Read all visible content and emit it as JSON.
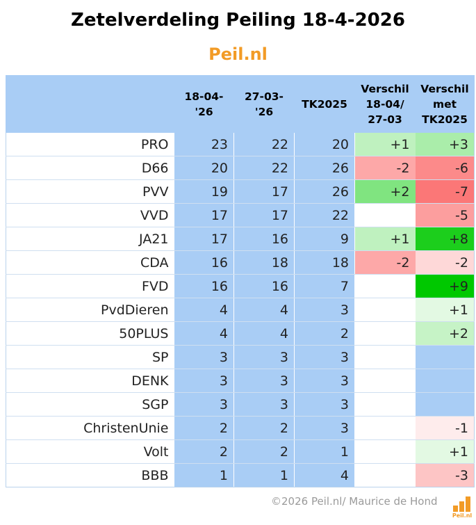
{
  "title": "Zetelverdeling Peiling 18-4-2026",
  "brand": "Peil.nl",
  "headers": {
    "party": "",
    "current": "18-04-\n'26",
    "previous": "27-03-\n'26",
    "tk": "TK2025",
    "diff_prev": "Verschil\n18-04/\n27-03",
    "diff_tk": "Verschil\nmet\nTK2025"
  },
  "rows": [
    {
      "party": "PRO",
      "current": "23",
      "previous": "22",
      "tk": "20",
      "diff_prev": "+1",
      "diff_tk": "+3"
    },
    {
      "party": "D66",
      "current": "20",
      "previous": "22",
      "tk": "26",
      "diff_prev": "-2",
      "diff_tk": "-6"
    },
    {
      "party": "PVV",
      "current": "19",
      "previous": "17",
      "tk": "26",
      "diff_prev": "+2",
      "diff_tk": "-7"
    },
    {
      "party": "VVD",
      "current": "17",
      "previous": "17",
      "tk": "22",
      "diff_prev": "",
      "diff_tk": "-5"
    },
    {
      "party": "JA21",
      "current": "17",
      "previous": "16",
      "tk": "9",
      "diff_prev": "+1",
      "diff_tk": "+8"
    },
    {
      "party": "CDA",
      "current": "16",
      "previous": "18",
      "tk": "18",
      "diff_prev": "-2",
      "diff_tk": "-2"
    },
    {
      "party": "FVD",
      "current": "16",
      "previous": "16",
      "tk": "7",
      "diff_prev": "",
      "diff_tk": "+9"
    },
    {
      "party": "PvdDieren",
      "current": "4",
      "previous": "4",
      "tk": "3",
      "diff_prev": "",
      "diff_tk": "+1"
    },
    {
      "party": "50PLUS",
      "current": "4",
      "previous": "4",
      "tk": "2",
      "diff_prev": "",
      "diff_tk": "+2"
    },
    {
      "party": "SP",
      "current": "3",
      "previous": "3",
      "tk": "3",
      "diff_prev": "",
      "diff_tk": ""
    },
    {
      "party": "DENK",
      "current": "3",
      "previous": "3",
      "tk": "3",
      "diff_prev": "",
      "diff_tk": ""
    },
    {
      "party": "SGP",
      "current": "3",
      "previous": "3",
      "tk": "3",
      "diff_prev": "",
      "diff_tk": ""
    },
    {
      "party": "ChristenUnie",
      "current": "2",
      "previous": "2",
      "tk": "3",
      "diff_prev": "",
      "diff_tk": "-1"
    },
    {
      "party": "Volt",
      "current": "2",
      "previous": "2",
      "tk": "1",
      "diff_prev": "",
      "diff_tk": "+1"
    },
    {
      "party": "BBB",
      "current": "1",
      "previous": "1",
      "tk": "4",
      "diff_prev": "",
      "diff_tk": "-3"
    }
  ],
  "colors": {
    "header_bg": "#a9cdf5",
    "number_col_bg": "#a9cdf5",
    "brand": "#f29b26",
    "footer_text": "#9a9a9a"
  },
  "footer": "©2026 Peil.nl/ Maurice de Hond",
  "logo_text": "Peil.nl"
}
